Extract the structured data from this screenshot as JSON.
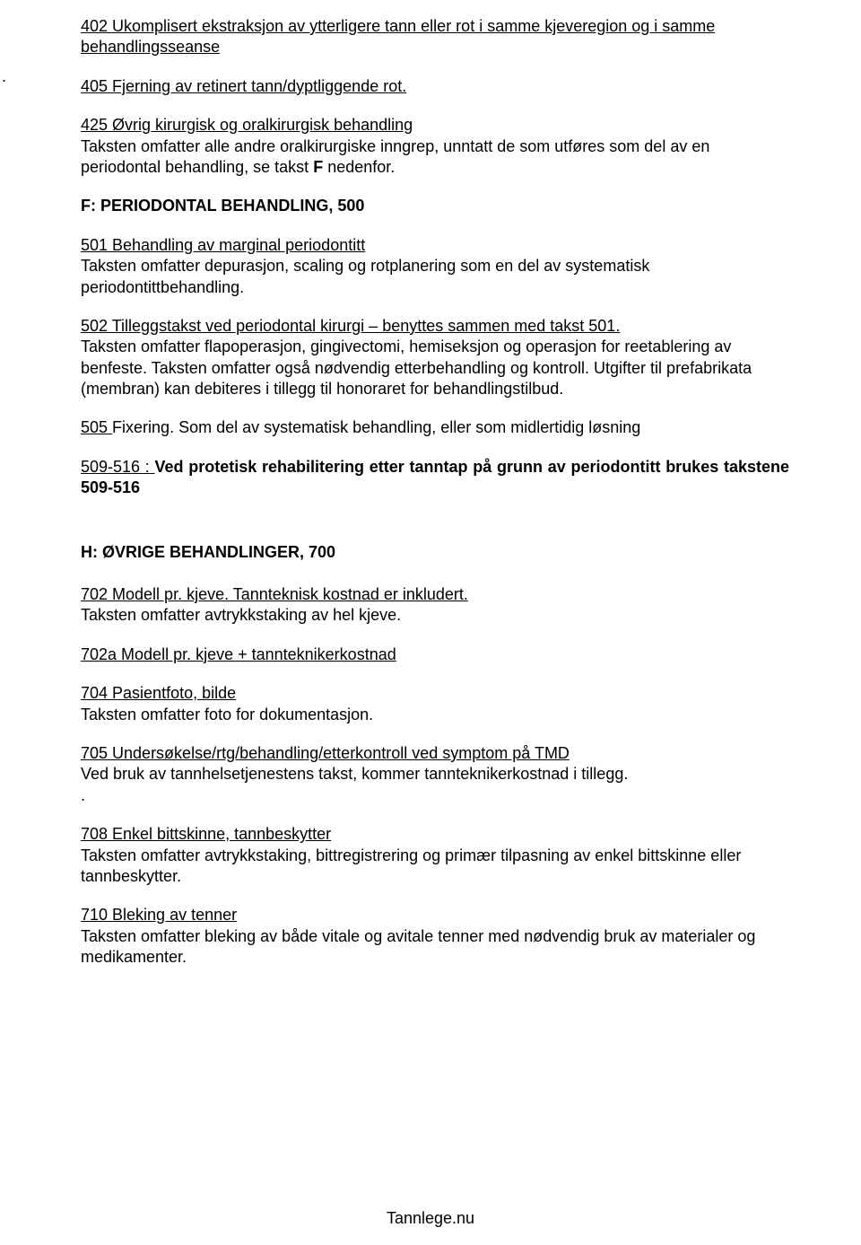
{
  "edge_dot": ".",
  "sec402": {
    "title": "402  Ukomplisert ekstraksjon av ytterligere tann eller rot i samme kjeveregion og i samme behandlingsseanse"
  },
  "sec405": {
    "title": "405  Fjerning av retinert tann/dyptliggende rot."
  },
  "sec425": {
    "title": "425  Øvrig kirurgisk og oralkirurgisk behandling",
    "body_a": "Taksten omfatter alle andre oralkirurgiske inngrep, unntatt de som utføres som del av en periodontal behandling, se takst ",
    "body_b": "F",
    "body_c": " nedenfor."
  },
  "headingF": "F: PERIODONTAL BEHANDLING, 500",
  "sec501": {
    "title": "501 Behandling av marginal periodontitt",
    "body": "Taksten omfatter depurasjon, scaling og rotplanering som en del av systematisk periodontittbehandling."
  },
  "sec502": {
    "title": "502 Tilleggstakst ved periodontal kirurgi – benyttes sammen med takst 501.",
    "body": "Taksten omfatter flapoperasjon, gingivectomi, hemiseksjon og operasjon for reetablering av benfeste. Taksten omfatter også nødvendig etterbehandling og kontroll. Utgifter til prefabrikata (membran) kan debiteres i tillegg til honoraret for behandlingstilbud."
  },
  "sec505": {
    "lead": "505 ",
    "body": " Fixering. Som del av systematisk behandling, eller som midlertidig løsning"
  },
  "sec509": {
    "lead": "509-516 : ",
    "body": "Ved protetisk rehabilitering etter tanntap på grunn av periodontitt brukes takstene 509-516"
  },
  "headingH": "H: ØVRIGE  BEHANDLINGER, 700",
  "sec702": {
    "title": "702  Modell pr. kjeve. Tannteknisk kostnad er inkludert.",
    "body": "Taksten omfatter avtrykkstaking av hel kjeve."
  },
  "sec702a": {
    "title": "702a Modell pr. kjeve + tannteknikerkostnad"
  },
  "sec704": {
    "title": "704  Pasientfoto, bilde",
    "body": "Taksten omfatter foto for dokumentasjon."
  },
  "sec705": {
    "title": "705  Undersøkelse/rtg/behandling/etterkontroll ved symptom på TMD",
    "body": "Ved bruk av tannhelsetjenestens takst, kommer tannteknikerkostnad i tillegg.",
    "dot": "."
  },
  "sec708": {
    "title": "708  Enkel bittskinne, tannbeskytter",
    "body": "Taksten omfatter avtrykkstaking, bittregistrering og primær tilpasning av enkel bittskinne eller tannbeskytter."
  },
  "sec710": {
    "title": "710  Bleking av tenner",
    "body": "Taksten omfatter bleking av både vitale og avitale tenner med nødvendig bruk av materialer og medikamenter."
  },
  "footer": "Tannlege.nu"
}
